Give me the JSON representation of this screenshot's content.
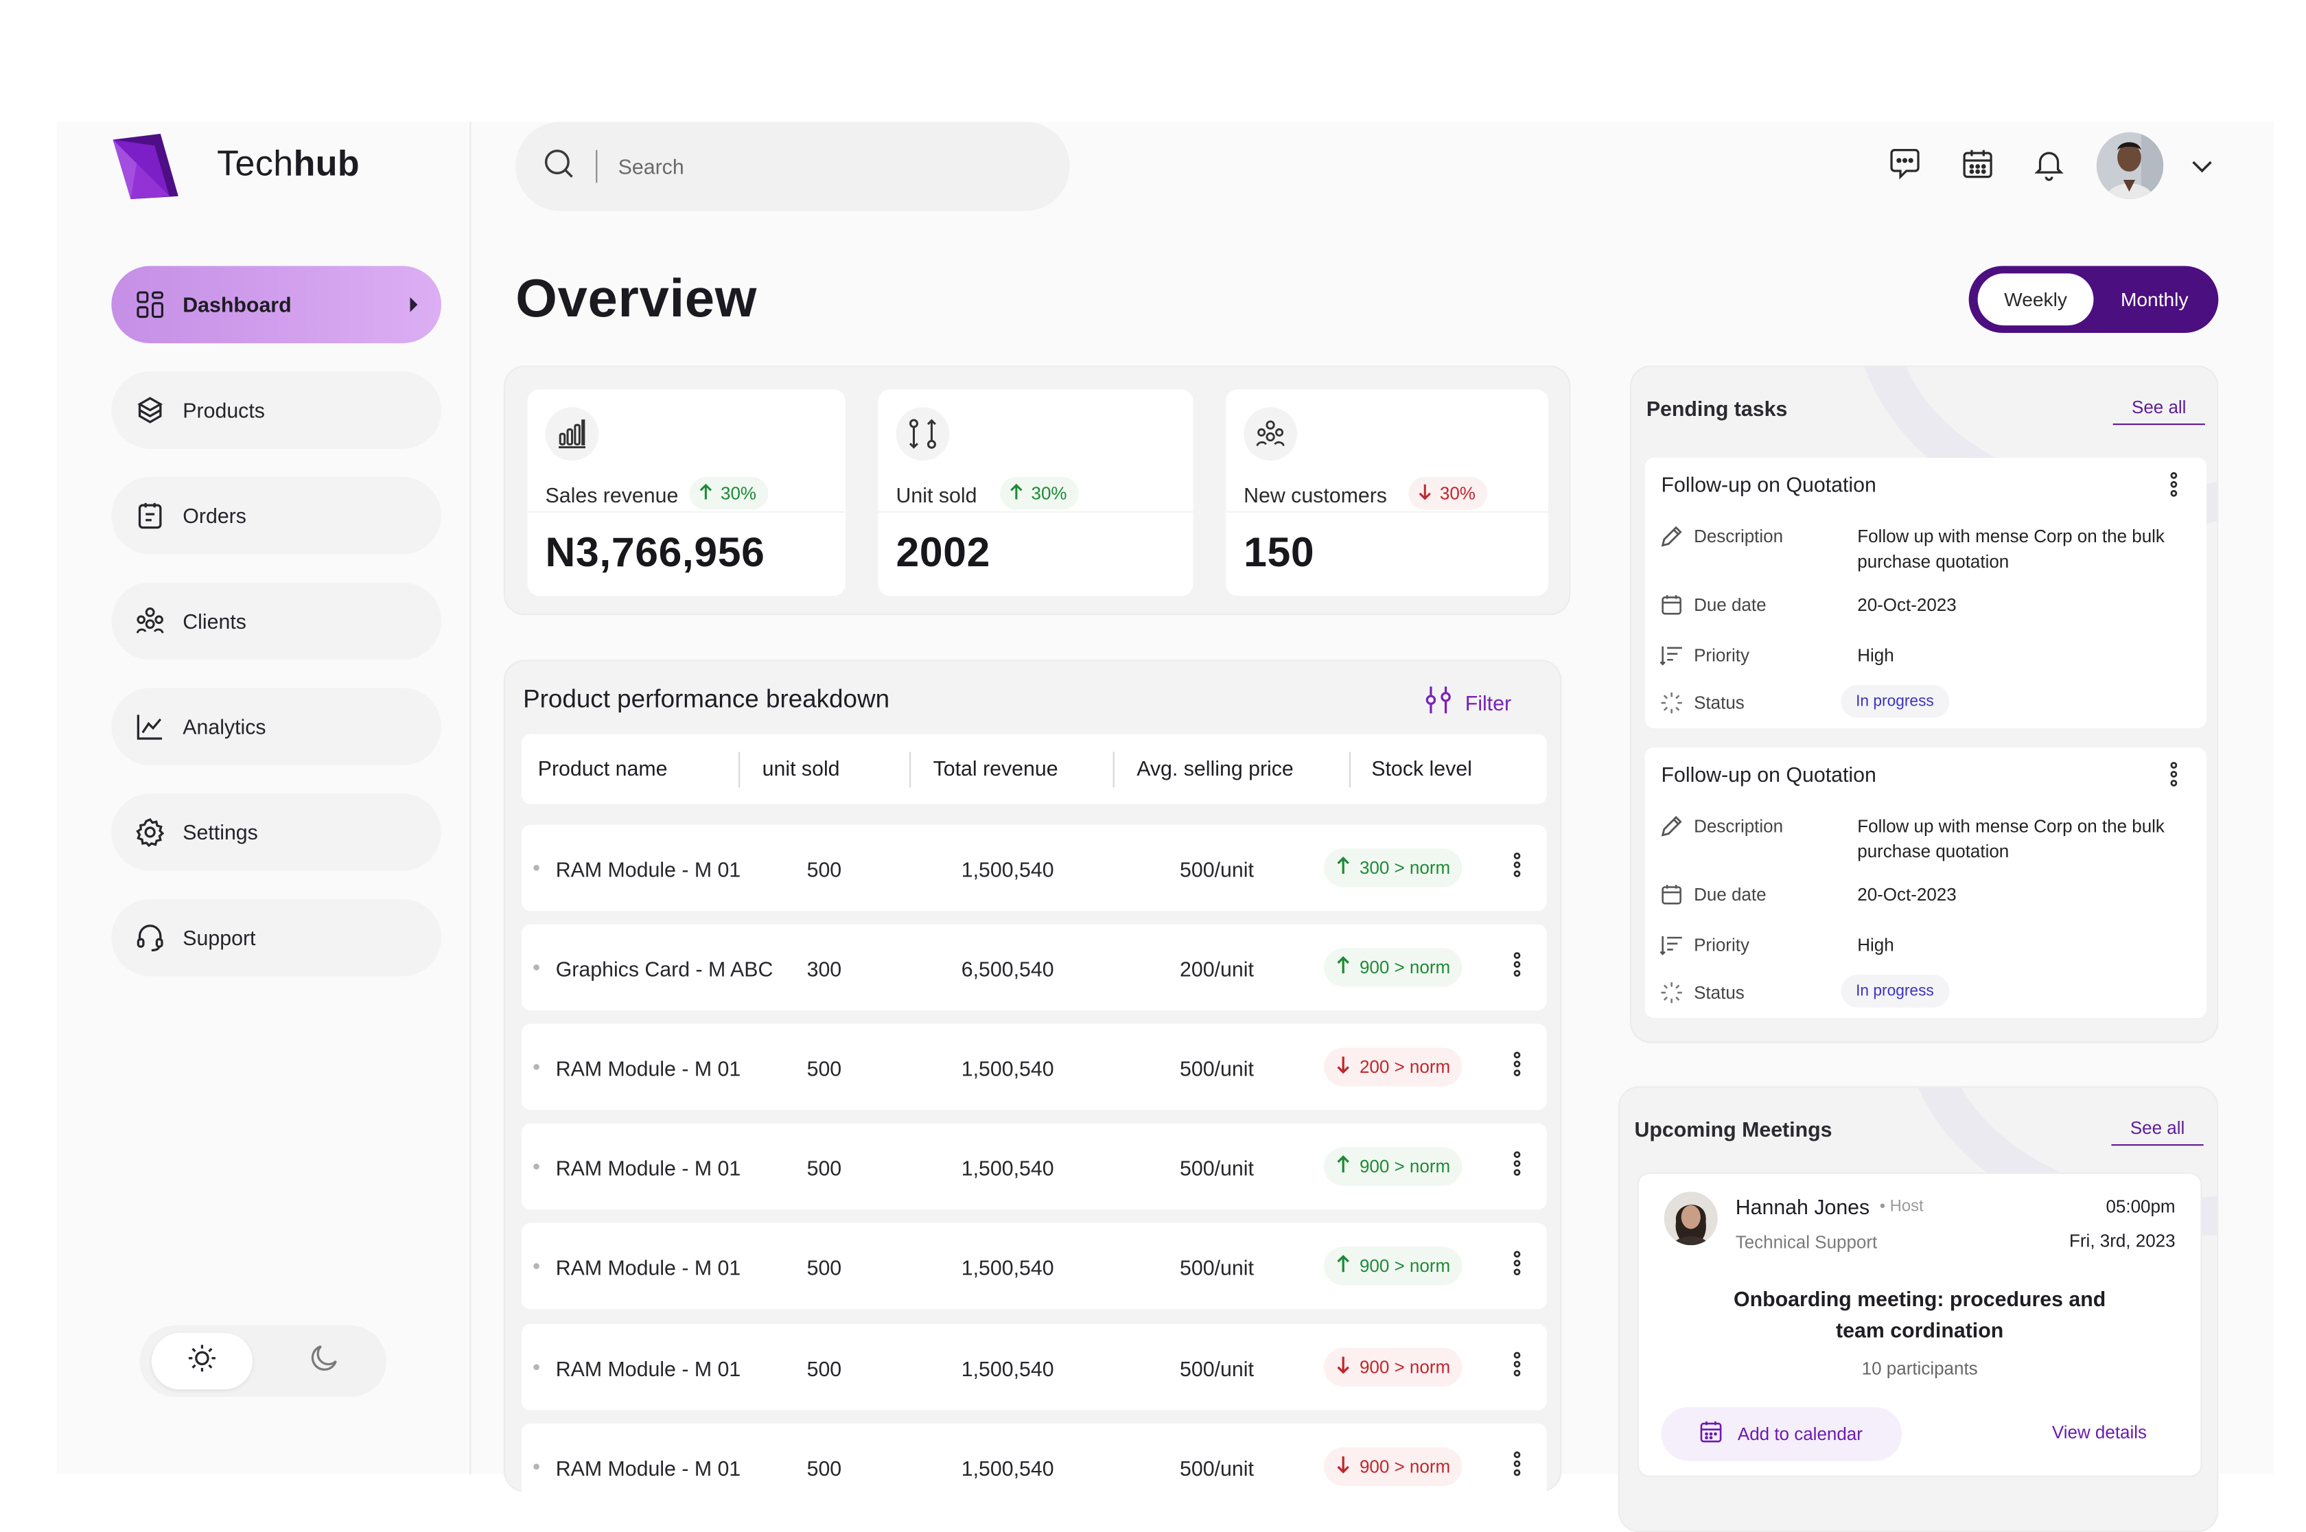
{
  "brand": {
    "name_light": "Tech",
    "name_bold": "hub",
    "accent": "#7a22b8",
    "accent_dark": "#4c0f7f"
  },
  "sidebar": {
    "items": [
      {
        "label": "Dashboard",
        "icon": "grid-icon",
        "active": true
      },
      {
        "label": "Products",
        "icon": "box-icon"
      },
      {
        "label": "Orders",
        "icon": "clipboard-icon"
      },
      {
        "label": "Clients",
        "icon": "people-icon"
      },
      {
        "label": "Analytics",
        "icon": "line-chart-icon"
      },
      {
        "label": "Settings",
        "icon": "gear-icon"
      },
      {
        "label": "Support",
        "icon": "headset-icon"
      }
    ],
    "theme": {
      "light_icon": "sun-icon",
      "dark_icon": "moon-icon",
      "selected": "light"
    }
  },
  "header": {
    "search": {
      "placeholder": "Search"
    },
    "icons": [
      "chat-icon",
      "calendar-icon",
      "bell-icon"
    ]
  },
  "main": {
    "title": "Overview",
    "period": {
      "weekly": "Weekly",
      "monthly": "Monthly",
      "selected": "weekly"
    }
  },
  "stats": [
    {
      "label": "Sales revenue",
      "delta": "30%",
      "direction": "up",
      "value": "N3,766,956",
      "icon": "bar-chart-icon"
    },
    {
      "label": "Unit sold",
      "delta": "30%",
      "direction": "up",
      "value": "2002",
      "icon": "swap-icon"
    },
    {
      "label": "New customers",
      "delta": "30%",
      "direction": "down",
      "value": "150",
      "icon": "users-icon"
    }
  ],
  "performance": {
    "title": "Product performance breakdown",
    "filter_label": "Filter",
    "columns": [
      "Product name",
      "unit sold",
      "Total revenue",
      "Avg. selling price",
      "Stock level"
    ],
    "rows": [
      {
        "name": "RAM Module - M 01",
        "units": "500",
        "revenue": "1,500,540",
        "price": "500/unit",
        "stock": "300 > norm",
        "dir": "up"
      },
      {
        "name": "Graphics Card - M ABC",
        "units": "300",
        "revenue": "6,500,540",
        "price": "200/unit",
        "stock": "900 > norm",
        "dir": "up"
      },
      {
        "name": "RAM Module - M 01",
        "units": "500",
        "revenue": "1,500,540",
        "price": "500/unit",
        "stock": "200 > norm",
        "dir": "down"
      },
      {
        "name": "RAM Module - M 01",
        "units": "500",
        "revenue": "1,500,540",
        "price": "500/unit",
        "stock": "900 > norm",
        "dir": "up"
      },
      {
        "name": "RAM Module - M 01",
        "units": "500",
        "revenue": "1,500,540",
        "price": "500/unit",
        "stock": "900 > norm",
        "dir": "up"
      },
      {
        "name": "RAM Module - M 01",
        "units": "500",
        "revenue": "1,500,540",
        "price": "500/unit",
        "stock": "900 > norm",
        "dir": "down"
      },
      {
        "name": "RAM Module - M 01",
        "units": "500",
        "revenue": "1,500,540",
        "price": "500/unit",
        "stock": "900 > norm",
        "dir": "down"
      }
    ]
  },
  "pending": {
    "title": "Pending tasks",
    "see_all": "See all",
    "tasks": [
      {
        "title": "Follow-up on Quotation",
        "desc_label": "Description",
        "desc": "Follow up with mense Corp on the bulk purchase quotation",
        "due_label": "Due date",
        "due": "20-Oct-2023",
        "priority_label": "Priority",
        "priority": "High",
        "status_label": "Status",
        "status": "In progress"
      },
      {
        "title": "Follow-up on Quotation",
        "desc_label": "Description",
        "desc": "Follow up with mense Corp on the bulk purchase quotation",
        "due_label": "Due date",
        "due": "20-Oct-2023",
        "priority_label": "Priority",
        "priority": "High",
        "status_label": "Status",
        "status": "In progress"
      }
    ]
  },
  "meetings": {
    "title": "Upcoming Meetings",
    "see_all": "See all",
    "item": {
      "host": "Hannah Jones",
      "role": "• Host",
      "dept": "Technical Support",
      "time": "05:00pm",
      "date": "Fri, 3rd, 2023",
      "title": "Onboarding meeting: procedures and team cordination",
      "participants": "10 participants",
      "add_label": "Add to calendar",
      "view_label": "View details"
    }
  }
}
